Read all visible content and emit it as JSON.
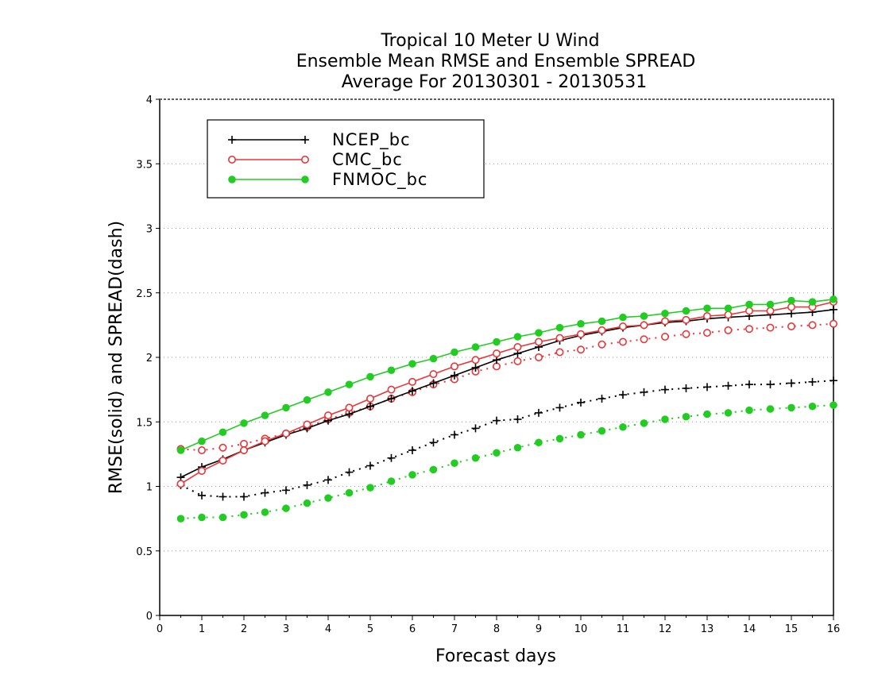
{
  "chart_data": {
    "type": "line",
    "title_lines": [
      "Tropical 10 Meter U Wind",
      "Ensemble Mean RMSE and Ensemble SPREAD",
      "Average For 20130301 - 20130531"
    ],
    "xlabel": "Forecast days",
    "ylabel": "RMSE(solid) and SPREAD(dash)",
    "xlim": [
      0,
      16
    ],
    "ylim": [
      0,
      4
    ],
    "xticks": [
      0,
      1,
      2,
      3,
      4,
      5,
      6,
      7,
      8,
      9,
      10,
      11,
      12,
      13,
      14,
      15,
      16
    ],
    "yticks": [
      0,
      0.5,
      1,
      1.5,
      2,
      2.5,
      3,
      3.5,
      4
    ],
    "ytick_labels": [
      "0",
      "0.5",
      "1",
      "1.5",
      "2",
      "2.5",
      "3",
      "3.5",
      "4"
    ],
    "grid": "horizontal dotted",
    "legend_position": "top-left",
    "x": [
      0.5,
      1,
      1.5,
      2,
      2.5,
      3,
      3.5,
      4,
      4.5,
      5,
      5.5,
      6,
      6.5,
      7,
      7.5,
      8,
      8.5,
      9,
      9.5,
      10,
      10.5,
      11,
      11.5,
      12,
      12.5,
      13,
      13.5,
      14,
      14.5,
      15,
      15.5,
      16
    ],
    "series": [
      {
        "name": "NCEP_bc",
        "color": "#000000",
        "marker": "plus",
        "style": "solid",
        "values": [
          1.07,
          1.15,
          1.21,
          1.28,
          1.34,
          1.4,
          1.45,
          1.51,
          1.56,
          1.62,
          1.68,
          1.74,
          1.8,
          1.86,
          1.92,
          1.98,
          2.03,
          2.08,
          2.13,
          2.17,
          2.2,
          2.23,
          2.25,
          2.27,
          2.28,
          2.3,
          2.31,
          2.32,
          2.33,
          2.34,
          2.35,
          2.37
        ]
      },
      {
        "name": "CMC_bc",
        "color": "#e8373a",
        "marker": "circle",
        "style": "solid",
        "values": [
          1.02,
          1.12,
          1.2,
          1.28,
          1.35,
          1.41,
          1.48,
          1.55,
          1.61,
          1.68,
          1.75,
          1.81,
          1.87,
          1.93,
          1.98,
          2.03,
          2.08,
          2.12,
          2.15,
          2.18,
          2.21,
          2.24,
          2.25,
          2.28,
          2.29,
          2.32,
          2.33,
          2.36,
          2.36,
          2.39,
          2.39,
          2.43
        ]
      },
      {
        "name": "FNMOC_bc",
        "color": "#22cc22",
        "marker": "dot",
        "style": "solid",
        "values": [
          1.28,
          1.35,
          1.42,
          1.49,
          1.55,
          1.61,
          1.67,
          1.73,
          1.79,
          1.85,
          1.9,
          1.95,
          1.99,
          2.04,
          2.08,
          2.12,
          2.16,
          2.19,
          2.23,
          2.26,
          2.28,
          2.31,
          2.32,
          2.34,
          2.36,
          2.38,
          2.38,
          2.41,
          2.41,
          2.44,
          2.43,
          2.45
        ]
      },
      {
        "name": "NCEP_bc spread",
        "color": "#000000",
        "marker": "plus",
        "style": "dash",
        "values": [
          1.01,
          0.93,
          0.92,
          0.92,
          0.95,
          0.97,
          1.01,
          1.05,
          1.11,
          1.16,
          1.22,
          1.28,
          1.34,
          1.4,
          1.45,
          1.51,
          1.52,
          1.57,
          1.61,
          1.65,
          1.68,
          1.71,
          1.73,
          1.75,
          1.76,
          1.77,
          1.78,
          1.79,
          1.79,
          1.8,
          1.81,
          1.82
        ]
      },
      {
        "name": "CMC_bc spread",
        "color": "#e8373a",
        "marker": "circle",
        "style": "dash",
        "values": [
          1.29,
          1.28,
          1.3,
          1.33,
          1.37,
          1.41,
          1.46,
          1.52,
          1.57,
          1.62,
          1.68,
          1.73,
          1.79,
          1.83,
          1.89,
          1.93,
          1.97,
          2.0,
          2.04,
          2.06,
          2.1,
          2.12,
          2.14,
          2.16,
          2.18,
          2.19,
          2.21,
          2.22,
          2.23,
          2.24,
          2.25,
          2.26
        ]
      },
      {
        "name": "FNMOC_bc spread",
        "color": "#22cc22",
        "marker": "dot",
        "style": "dash",
        "values": [
          0.75,
          0.76,
          0.76,
          0.78,
          0.8,
          0.83,
          0.87,
          0.91,
          0.95,
          0.99,
          1.04,
          1.09,
          1.13,
          1.18,
          1.22,
          1.26,
          1.3,
          1.34,
          1.37,
          1.4,
          1.43,
          1.46,
          1.49,
          1.52,
          1.54,
          1.56,
          1.57,
          1.59,
          1.6,
          1.61,
          1.62,
          1.63
        ]
      }
    ],
    "legend": [
      {
        "label": "NCEP_bc",
        "color": "#000000",
        "marker": "plus"
      },
      {
        "label": "CMC_bc",
        "color": "#e8373a",
        "marker": "circle"
      },
      {
        "label": "FNMOC_bc",
        "color": "#22cc22",
        "marker": "dot"
      }
    ]
  }
}
